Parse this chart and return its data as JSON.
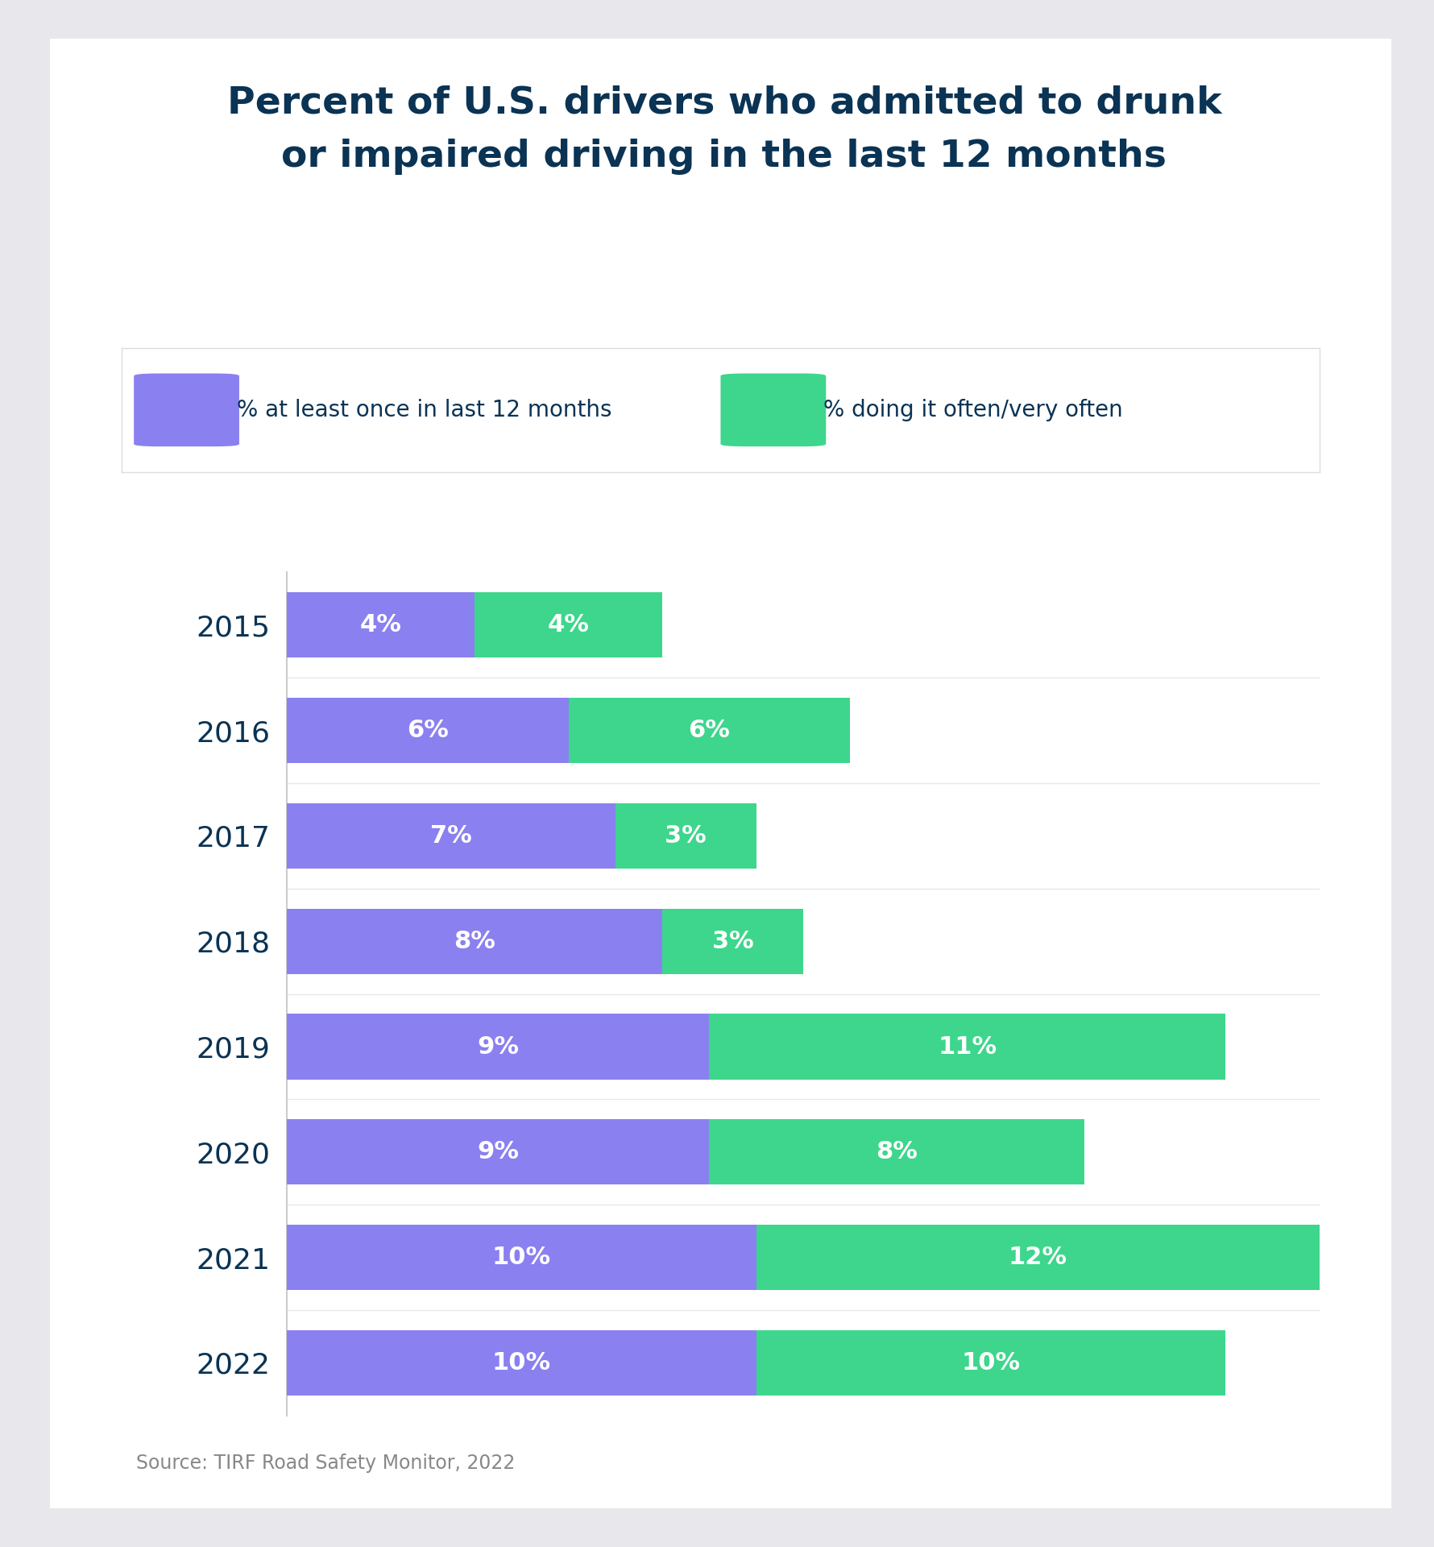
{
  "title": "Percent of U.S. drivers who admitted to drunk\nor impaired driving in the last 12 months",
  "years": [
    "2015",
    "2016",
    "2017",
    "2018",
    "2019",
    "2020",
    "2021",
    "2022"
  ],
  "purple_values": [
    4,
    6,
    7,
    8,
    9,
    9,
    10,
    10
  ],
  "green_values": [
    4,
    6,
    3,
    3,
    11,
    8,
    12,
    10
  ],
  "purple_color": "#8B80F0",
  "green_color": "#3DD68C",
  "title_color": "#0A3354",
  "label_color": "#FFFFFF",
  "year_label_color": "#0A3354",
  "legend_text_color": "#0A3354",
  "source_text": "Source: TIRF Road Safety Monitor, 2022",
  "legend_label_purple": "% at least once in last 12 months",
  "legend_label_green": "% doing it often/very often",
  "background_outer": "#E8E8EC",
  "background_card": "#FFFFFF",
  "bar_height": 0.62,
  "title_fontsize": 34,
  "legend_fontsize": 20,
  "bar_label_fontsize": 22,
  "year_label_fontsize": 26,
  "source_fontsize": 17,
  "xlim_max": 22
}
